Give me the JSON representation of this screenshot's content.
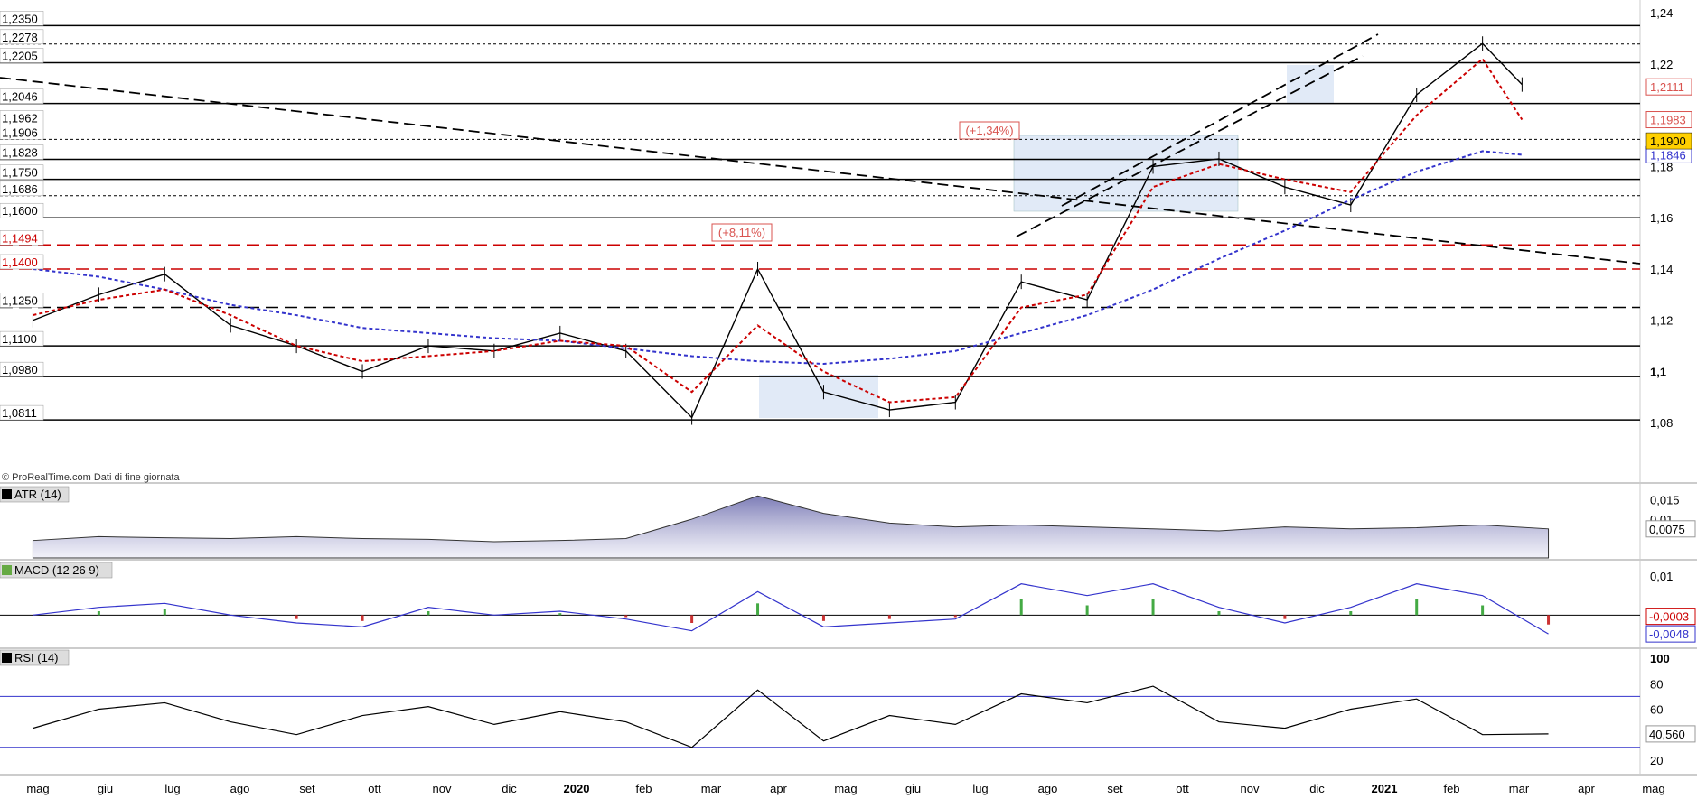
{
  "watermark": "© ProRealTime.com  Dati di fine giornata",
  "chart_data": {
    "type": "line",
    "instrument_panel": {
      "price_axis_ticks": [
        "1,24",
        "1,22",
        "1,2",
        "1,18",
        "1,16",
        "1,14",
        "1,12",
        "1,1",
        "1,08"
      ],
      "price_axis_tick_values": [
        1.24,
        1.22,
        1.2,
        1.18,
        1.16,
        1.14,
        1.12,
        1.1,
        1.08
      ],
      "ylim": [
        1.06,
        1.245
      ],
      "last_price": "1,1900",
      "last_price_color": "#ffd000",
      "right_markers": [
        {
          "text": "1,2111",
          "value": 1.2111,
          "color": "#d9534f"
        },
        {
          "text": "1,1983",
          "value": 1.1983,
          "color": "#d9534f"
        },
        {
          "text": "1,1846",
          "value": 1.1846,
          "color": "#3333cc"
        }
      ],
      "left_levels": [
        {
          "text": "1,2350",
          "value": 1.235,
          "style": "solid",
          "color": "#000000"
        },
        {
          "text": "1,2278",
          "value": 1.2278,
          "style": "dotted",
          "color": "#000000"
        },
        {
          "text": "1,2205",
          "value": 1.2205,
          "style": "solid",
          "color": "#000000"
        },
        {
          "text": "1,2046",
          "value": 1.2046,
          "style": "solid",
          "color": "#000000"
        },
        {
          "text": "1,1962",
          "value": 1.1962,
          "style": "dotted",
          "color": "#000000"
        },
        {
          "text": "1,1906",
          "value": 1.1906,
          "style": "dotted",
          "color": "#000000"
        },
        {
          "text": "1,1828",
          "value": 1.1828,
          "style": "solid",
          "color": "#000000"
        },
        {
          "text": "1,1750",
          "value": 1.175,
          "style": "solid",
          "color": "#000000"
        },
        {
          "text": "1,1686",
          "value": 1.1686,
          "style": "dotted",
          "color": "#000000"
        },
        {
          "text": "1,1600",
          "value": 1.16,
          "style": "solid",
          "color": "#000000"
        },
        {
          "text": "1,1494",
          "value": 1.1494,
          "style": "dashed",
          "color": "#cc0000"
        },
        {
          "text": "1,1400",
          "value": 1.14,
          "style": "dashed",
          "color": "#cc0000"
        },
        {
          "text": "1,1250",
          "value": 1.125,
          "style": "dashed",
          "color": "#000000"
        },
        {
          "text": "1,1100",
          "value": 1.11,
          "style": "solid",
          "color": "#000000"
        },
        {
          "text": "1,0980",
          "value": 1.098,
          "style": "solid",
          "color": "#000000"
        },
        {
          "text": "1,0811",
          "value": 1.0811,
          "style": "solid",
          "color": "#000000"
        }
      ],
      "annotations": [
        {
          "text": "(+8,11%)",
          "color": "#d9534f"
        },
        {
          "text": "(+1,34%)",
          "color": "#d9534f"
        }
      ],
      "x_ticks": [
        "mag",
        "giu",
        "lug",
        "ago",
        "set",
        "ott",
        "nov",
        "dic",
        "2020",
        "feb",
        "mar",
        "apr",
        "mag",
        "giu",
        "lug",
        "ago",
        "set",
        "ott",
        "nov",
        "dic",
        "2021",
        "feb",
        "mar",
        "apr",
        "mag"
      ],
      "x_bold": [
        "2020",
        "2021"
      ],
      "series": [
        {
          "x": [
            0,
            1,
            2,
            3,
            4,
            5,
            6,
            7,
            8,
            9,
            10,
            11,
            12,
            13,
            14,
            15,
            16,
            17,
            18,
            19,
            20,
            21,
            22,
            22.6
          ],
          "values": [
            1.12,
            1.13,
            1.138,
            1.118,
            1.11,
            1.1,
            1.11,
            1.108,
            1.115,
            1.108,
            1.082,
            1.14,
            1.092,
            1.085,
            1.088,
            1.135,
            1.128,
            1.18,
            1.183,
            1.172,
            1.165,
            1.208,
            1.228,
            1.212
          ]
        },
        {
          "x": [
            0,
            1,
            2,
            3,
            4,
            5,
            6,
            7,
            8,
            9,
            10,
            11,
            12,
            13,
            14,
            15,
            16,
            17,
            18,
            19,
            20,
            21,
            22,
            22.6
          ],
          "values": [
            1.14,
            1.137,
            1.132,
            1.126,
            1.122,
            1.117,
            1.115,
            1.113,
            1.112,
            1.109,
            1.106,
            1.104,
            1.103,
            1.105,
            1.108,
            1.115,
            1.122,
            1.132,
            1.144,
            1.155,
            1.167,
            1.178,
            1.186,
            1.1846
          ],
          "color": "#3333cc",
          "style": "dotted"
        },
        {
          "x": [
            0,
            1,
            2,
            3,
            4,
            5,
            6,
            7,
            8,
            9,
            10,
            11,
            12,
            13,
            14,
            15,
            16,
            17,
            18,
            19,
            20,
            21,
            22,
            22.6
          ],
          "values": [
            1.122,
            1.128,
            1.132,
            1.122,
            1.11,
            1.104,
            1.106,
            1.108,
            1.112,
            1.11,
            1.092,
            1.118,
            1.1,
            1.088,
            1.09,
            1.125,
            1.13,
            1.172,
            1.181,
            1.175,
            1.17,
            1.2,
            1.222,
            1.1983
          ],
          "color": "#cc0000",
          "style": "dotted"
        }
      ]
    },
    "indicator_panels": [
      {
        "label": "ATR (14)",
        "ticks": [
          "0,015",
          "0,01"
        ],
        "tick_values": [
          0.015,
          0.01
        ],
        "ylim": [
          0,
          0.017
        ],
        "value_label": "0,0075",
        "values": [
          0.0045,
          0.0055,
          0.0052,
          0.005,
          0.0055,
          0.005,
          0.0048,
          0.0042,
          0.0045,
          0.005,
          0.01,
          0.016,
          0.0115,
          0.009,
          0.008,
          0.0085,
          0.008,
          0.0075,
          0.007,
          0.008,
          0.0075,
          0.0078,
          0.0085,
          0.0075
        ]
      },
      {
        "label": "MACD (12 26 9)",
        "ticks": [
          "0,01"
        ],
        "tick_values": [
          0.01
        ],
        "ylim": [
          -0.008,
          0.013
        ],
        "value_labels": [
          {
            "text": "-0,0003",
            "color": "#cc0000"
          },
          {
            "text": "-0,0048",
            "color": "#3333cc"
          }
        ],
        "values": [
          0.0,
          0.002,
          0.003,
          0.0,
          -0.002,
          -0.003,
          0.002,
          0.0,
          0.001,
          -0.001,
          -0.004,
          0.006,
          -0.003,
          -0.002,
          -0.001,
          0.008,
          0.005,
          0.008,
          0.002,
          -0.002,
          0.002,
          0.008,
          0.005,
          -0.0048
        ]
      },
      {
        "label": "RSI (14)",
        "ticks": [
          "100",
          "80",
          "60",
          "40",
          "20"
        ],
        "tick_values": [
          100,
          80,
          60,
          40,
          20
        ],
        "ylim": [
          10,
          105
        ],
        "value_label": "40,560",
        "bands": [
          70,
          30
        ],
        "values": [
          45,
          60,
          65,
          50,
          40,
          55,
          62,
          48,
          58,
          50,
          30,
          75,
          35,
          55,
          48,
          72,
          65,
          78,
          50,
          45,
          60,
          68,
          40,
          40.56
        ]
      }
    ]
  }
}
